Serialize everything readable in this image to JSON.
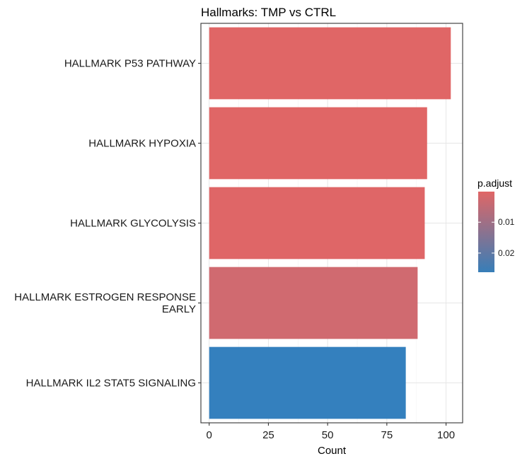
{
  "chart_data": {
    "type": "bar",
    "orientation": "horizontal",
    "title": "Hallmarks: TMP vs CTRL",
    "xlabel": "Count",
    "ylabel": "",
    "xlim": [
      -3.5,
      107
    ],
    "x_ticks": [
      0,
      25,
      50,
      75,
      100
    ],
    "grid": true,
    "categories": [
      "HALLMARK P53 PATHWAY",
      "HALLMARK HYPOXIA",
      "HALLMARK GLYCOLYSIS",
      "HALLMARK ESTROGEN RESPONSE EARLY",
      "HALLMARK IL2 STAT5 SIGNALING"
    ],
    "category_label_lines": [
      [
        "HALLMARK P53 PATHWAY"
      ],
      [
        "HALLMARK HYPOXIA"
      ],
      [
        "HALLMARK GLYCOLYSIS"
      ],
      [
        "HALLMARK ESTROGEN RESPONSE",
        "EARLY"
      ],
      [
        "HALLMARK IL2 STAT5 SIGNALING"
      ]
    ],
    "values": [
      102,
      92,
      91,
      88,
      83
    ],
    "p_adjust": [
      0.0002,
      0.0005,
      0.0009,
      0.0045,
      0.0255
    ],
    "bar_colors": [
      "#E06666",
      "#E06666",
      "#DF6667",
      "#D06A70",
      "#3480BE"
    ],
    "color_scale": {
      "title": "p.adjust",
      "low_color": "#E06666",
      "high_color": "#377EB8",
      "range": [
        0.0001,
        0.0262
      ],
      "ticks": [
        0.01,
        0.02
      ],
      "tick_labels": [
        "0.01",
        "0.02"
      ],
      "legend_position": "right"
    }
  }
}
